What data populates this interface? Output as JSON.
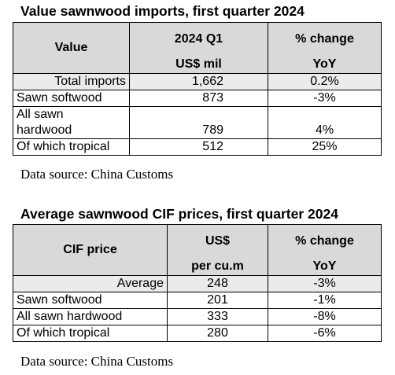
{
  "table1": {
    "title": "Value sawnwood imports, first quarter 2024",
    "headers": {
      "col1": "Value",
      "col2_top": "2024 Q1",
      "col2_bottom": "US$ mil",
      "col3_top": "% change",
      "col3_bottom": "YoY"
    },
    "rows": [
      {
        "label": "Total imports",
        "value": "1,662",
        "change": "0.2%"
      },
      {
        "label": "Sawn softwood",
        "value": "873",
        "change": "-3%"
      },
      {
        "label_line1": "All sawn",
        "label_line2": "hardwood",
        "value": "789",
        "change": "4%"
      },
      {
        "label": "Of which tropical",
        "value": "512",
        "change": "25%"
      }
    ],
    "source": "Data source: China Customs"
  },
  "table2": {
    "title": "Average sawnwood CIF prices, first quarter 2024",
    "headers": {
      "col1": "CIF price",
      "col2_top": "US$",
      "col2_bottom": "per cu.m",
      "col3_top": "% change",
      "col3_bottom": "YoY"
    },
    "rows": [
      {
        "label": "Average",
        "value": "248",
        "change": "-3%"
      },
      {
        "label": "Sawn softwood",
        "value": "201",
        "change": "-1%"
      },
      {
        "label": "All sawn hardwood",
        "value": "333",
        "change": "-8%"
      },
      {
        "label": "Of which tropical",
        "value": "280",
        "change": "-6%"
      }
    ],
    "source": "Data source: China Customs"
  },
  "colors": {
    "header_bg": "#d9d9d9",
    "highlight_row_bg": "#ebebeb"
  }
}
